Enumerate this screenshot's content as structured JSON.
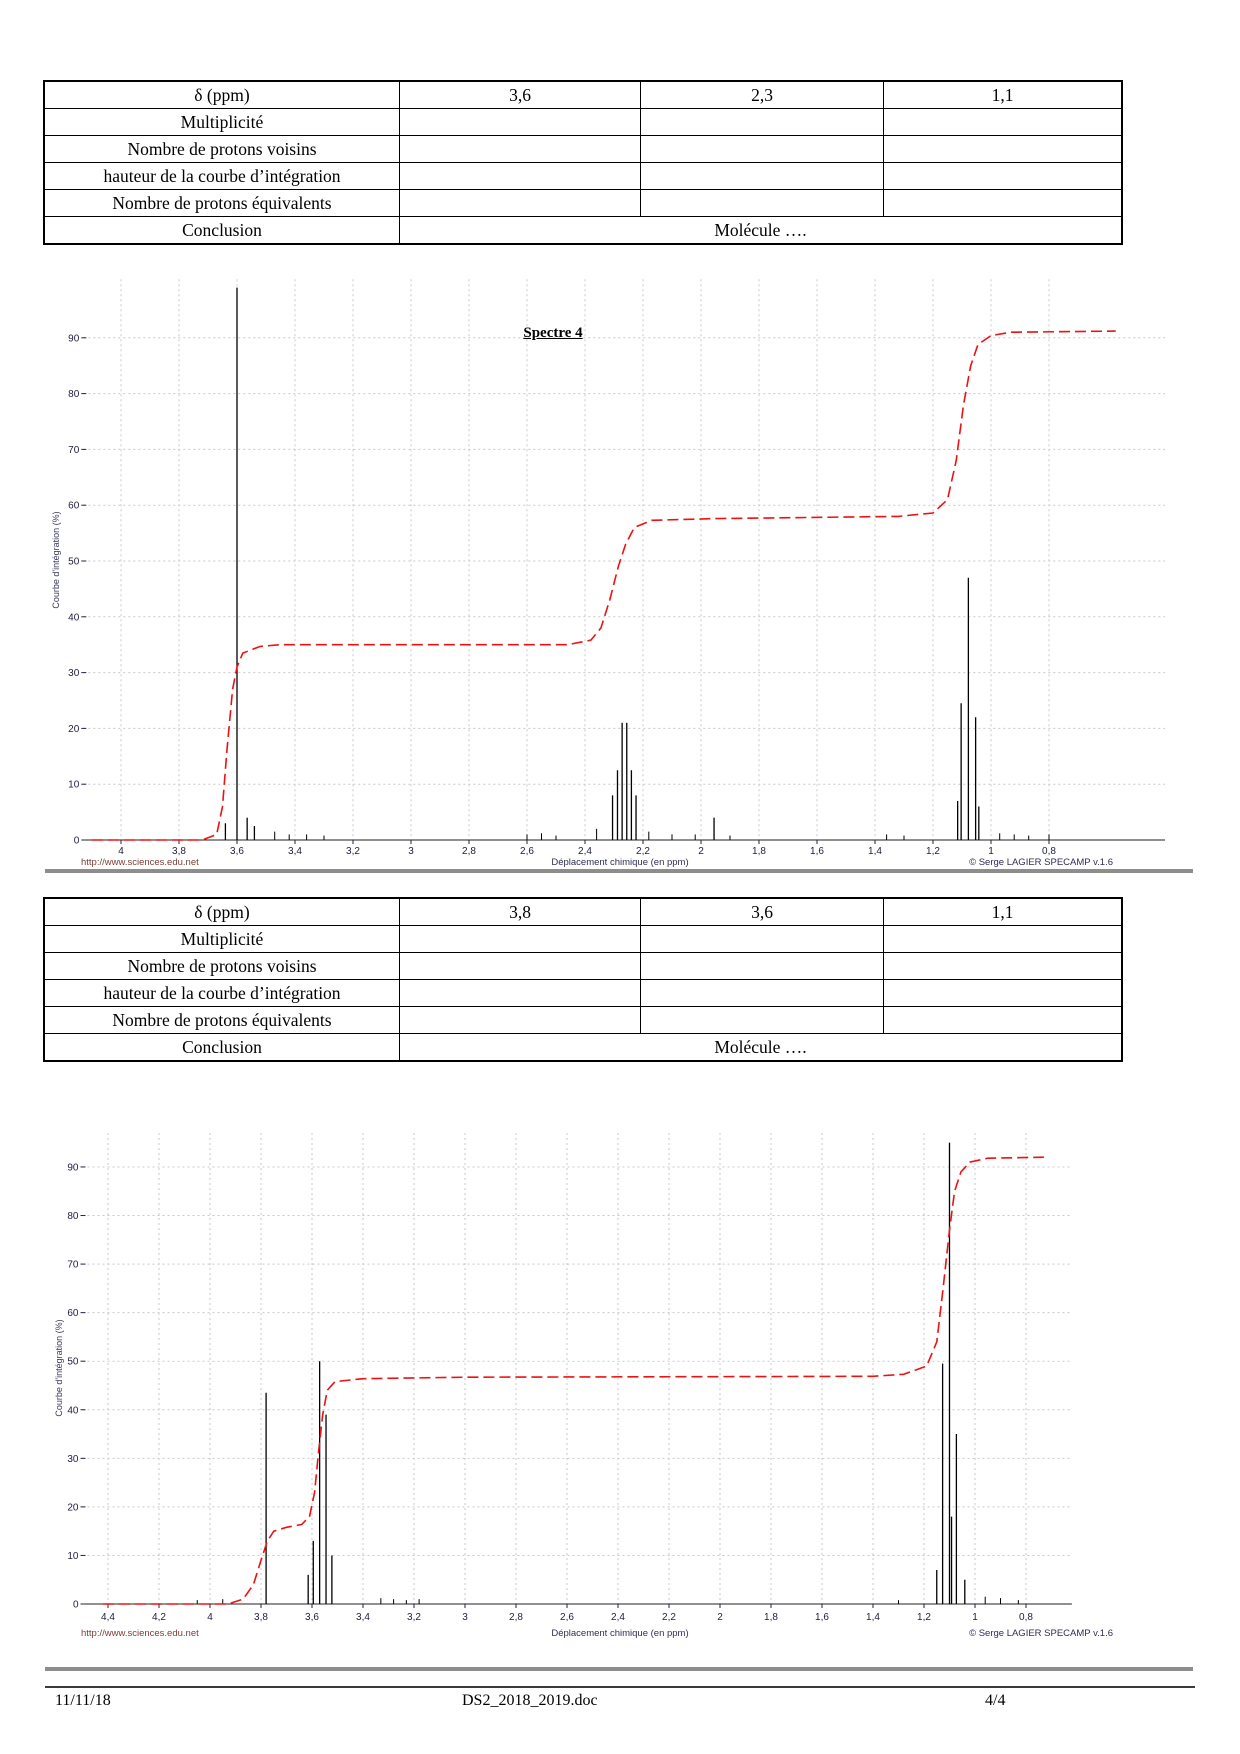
{
  "footer": {
    "date": "11/11/18",
    "filename": "DS2_2018_2019.doc",
    "page_number": "4/4"
  },
  "tables": [
    {
      "col_header_label": "δ (ppm)",
      "col_values": [
        "3,6",
        "2,3",
        "1,1"
      ],
      "row_labels": [
        "Multiplicité",
        "Nombre de protons voisins",
        "hauteur de la courbe d’intégration",
        "Nombre de protons équivalents"
      ],
      "conclusion_label": "Conclusion",
      "conclusion_value": "Molécule …."
    },
    {
      "col_header_label": "δ (ppm)",
      "col_values": [
        "3,8",
        "3,6",
        "1,1"
      ],
      "row_labels": [
        "Multiplicité",
        "Nombre de protons voisins",
        "hauteur de la courbe d’intégration",
        "Nombre de protons équivalents"
      ],
      "conclusion_label": "Conclusion",
      "conclusion_value": "Molécule …."
    }
  ],
  "chart_data": [
    {
      "type": "line",
      "subtype": "nmr-1h-spectrum",
      "title": "Spectre 4",
      "xlabel": "Déplacement chimique (en ppm)",
      "ylabel": "Courbe d'intégration (%)",
      "source_url": "http://www.sciences.edu.net",
      "credit": "© Serge LAGIER   SPECAMP v.1.6",
      "xlim": [
        4.13,
        0.4
      ],
      "ylim": [
        0,
        100.5
      ],
      "x_ticks": [
        4,
        3.8,
        3.6,
        3.4,
        3.2,
        3,
        2.8,
        2.6,
        2.4,
        2.2,
        2,
        1.8,
        1.6,
        1.4,
        1.2,
        1,
        0.8
      ],
      "y_ticks": [
        0,
        10,
        20,
        30,
        40,
        50,
        60,
        70,
        80,
        90
      ],
      "grid": true,
      "spectrum_color": "#000000",
      "integration_color": "#ee1111",
      "peaks": [
        {
          "ppm": 3.64,
          "height": 3
        },
        {
          "ppm": 3.6,
          "height": 99
        },
        {
          "ppm": 3.565,
          "height": 4
        },
        {
          "ppm": 3.54,
          "height": 2.5
        },
        {
          "ppm": 2.305,
          "height": 8
        },
        {
          "ppm": 2.288,
          "height": 12.5
        },
        {
          "ppm": 2.272,
          "height": 21
        },
        {
          "ppm": 2.256,
          "height": 21
        },
        {
          "ppm": 2.24,
          "height": 12.5
        },
        {
          "ppm": 2.224,
          "height": 8
        },
        {
          "ppm": 1.955,
          "height": 4
        },
        {
          "ppm": 1.115,
          "height": 7
        },
        {
          "ppm": 1.103,
          "height": 24.5
        },
        {
          "ppm": 1.078,
          "height": 47
        },
        {
          "ppm": 1.053,
          "height": 22
        },
        {
          "ppm": 1.042,
          "height": 6
        }
      ],
      "integration_plateaus": [
        35,
        57.5,
        91
      ],
      "integration_points": [
        [
          4.1,
          0
        ],
        [
          3.72,
          0
        ],
        [
          3.67,
          1
        ],
        [
          3.65,
          6
        ],
        [
          3.635,
          16
        ],
        [
          3.615,
          27
        ],
        [
          3.6,
          31
        ],
        [
          3.58,
          33.5
        ],
        [
          3.52,
          34.7
        ],
        [
          3.45,
          35
        ],
        [
          2.46,
          35
        ],
        [
          2.38,
          35.8
        ],
        [
          2.345,
          38
        ],
        [
          2.315,
          43
        ],
        [
          2.285,
          49
        ],
        [
          2.26,
          53
        ],
        [
          2.23,
          56
        ],
        [
          2.17,
          57.3
        ],
        [
          1.95,
          57.6
        ],
        [
          1.32,
          58
        ],
        [
          1.2,
          58.6
        ],
        [
          1.15,
          61
        ],
        [
          1.12,
          68
        ],
        [
          1.095,
          78
        ],
        [
          1.07,
          85
        ],
        [
          1.045,
          88.8
        ],
        [
          1.0,
          90.4
        ],
        [
          0.93,
          91
        ],
        [
          0.57,
          91.2
        ]
      ],
      "noise": [
        [
          3.47,
          1.5
        ],
        [
          3.42,
          1
        ],
        [
          3.36,
          1
        ],
        [
          3.3,
          0.8
        ],
        [
          2.6,
          1
        ],
        [
          2.55,
          1.2
        ],
        [
          2.5,
          0.8
        ],
        [
          2.36,
          2
        ],
        [
          2.18,
          1.5
        ],
        [
          2.1,
          1
        ],
        [
          2.02,
          1
        ],
        [
          1.9,
          0.8
        ],
        [
          1.36,
          1
        ],
        [
          1.3,
          0.8
        ],
        [
          0.97,
          1.2
        ],
        [
          0.92,
          1
        ],
        [
          0.87,
          0.8
        ],
        [
          0.8,
          1
        ]
      ]
    },
    {
      "type": "line",
      "subtype": "nmr-1h-spectrum",
      "title": "",
      "xlabel": "Déplacement chimique (en ppm)",
      "ylabel": "Courbe d'intégration (%)",
      "source_url": "http://www.sciences.edu.net",
      "credit": "© Serge LAGIER   SPECAMP v.1.6",
      "xlim": [
        4.5,
        0.62
      ],
      "ylim": [
        0,
        97
      ],
      "x_ticks": [
        4.4,
        4.2,
        4,
        3.8,
        3.6,
        3.4,
        3.2,
        3,
        2.8,
        2.6,
        2.4,
        2.2,
        2,
        1.8,
        1.6,
        1.4,
        1.2,
        1,
        0.8
      ],
      "y_ticks": [
        0,
        10,
        20,
        30,
        40,
        50,
        60,
        70,
        80,
        90
      ],
      "grid": true,
      "spectrum_color": "#000000",
      "integration_color": "#ee1111",
      "peaks": [
        {
          "ppm": 3.78,
          "height": 43.5
        },
        {
          "ppm": 3.615,
          "height": 6
        },
        {
          "ppm": 3.595,
          "height": 13
        },
        {
          "ppm": 3.57,
          "height": 50
        },
        {
          "ppm": 3.545,
          "height": 39
        },
        {
          "ppm": 3.522,
          "height": 10
        },
        {
          "ppm": 1.15,
          "height": 7
        },
        {
          "ppm": 1.127,
          "height": 49.5
        },
        {
          "ppm": 1.1,
          "height": 95
        },
        {
          "ppm": 1.092,
          "height": 18
        },
        {
          "ppm": 1.073,
          "height": 35
        },
        {
          "ppm": 1.04,
          "height": 5
        }
      ],
      "integration_plateaus": [
        16,
        46.5,
        92
      ],
      "integration_points": [
        [
          4.42,
          0
        ],
        [
          3.93,
          0
        ],
        [
          3.87,
          1
        ],
        [
          3.83,
          4
        ],
        [
          3.8,
          9
        ],
        [
          3.775,
          13
        ],
        [
          3.75,
          15
        ],
        [
          3.7,
          15.8
        ],
        [
          3.64,
          16.4
        ],
        [
          3.61,
          18
        ],
        [
          3.59,
          23
        ],
        [
          3.575,
          31
        ],
        [
          3.558,
          39
        ],
        [
          3.54,
          44
        ],
        [
          3.51,
          45.8
        ],
        [
          3.4,
          46.4
        ],
        [
          3.0,
          46.7
        ],
        [
          1.4,
          46.9
        ],
        [
          1.28,
          47.3
        ],
        [
          1.19,
          49
        ],
        [
          1.15,
          54
        ],
        [
          1.125,
          65
        ],
        [
          1.1,
          77
        ],
        [
          1.08,
          85
        ],
        [
          1.055,
          89
        ],
        [
          1.02,
          91
        ],
        [
          0.95,
          91.8
        ],
        [
          0.73,
          92
        ]
      ],
      "noise": [
        [
          4.05,
          0.8
        ],
        [
          3.95,
          1
        ],
        [
          3.33,
          1.2
        ],
        [
          3.28,
          1
        ],
        [
          3.23,
          0.8
        ],
        [
          3.18,
          1
        ],
        [
          1.3,
          0.8
        ],
        [
          0.96,
          1.5
        ],
        [
          0.9,
          1.2
        ],
        [
          0.83,
          0.8
        ]
      ]
    }
  ]
}
